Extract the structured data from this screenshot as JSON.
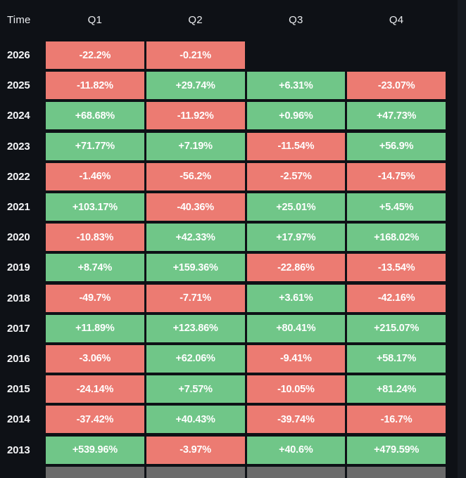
{
  "header": {
    "time_label": "Time",
    "columns": [
      "Q1",
      "Q2",
      "Q3",
      "Q4"
    ]
  },
  "chart_data": {
    "type": "heatmap",
    "columns": [
      "Q1",
      "Q2",
      "Q3",
      "Q4"
    ],
    "value_unit": "%",
    "rows": [
      {
        "year": "2026",
        "values": [
          "-22.2%",
          "-0.21%",
          "",
          ""
        ]
      },
      {
        "year": "2025",
        "values": [
          "-11.82%",
          "+29.74%",
          "+6.31%",
          "-23.07%"
        ]
      },
      {
        "year": "2024",
        "values": [
          "+68.68%",
          "-11.92%",
          "+0.96%",
          "+47.73%"
        ]
      },
      {
        "year": "2023",
        "values": [
          "+71.77%",
          "+7.19%",
          "-11.54%",
          "+56.9%"
        ]
      },
      {
        "year": "2022",
        "values": [
          "-1.46%",
          "-56.2%",
          "-2.57%",
          "-14.75%"
        ]
      },
      {
        "year": "2021",
        "values": [
          "+103.17%",
          "-40.36%",
          "+25.01%",
          "+5.45%"
        ]
      },
      {
        "year": "2020",
        "values": [
          "-10.83%",
          "+42.33%",
          "+17.97%",
          "+168.02%"
        ]
      },
      {
        "year": "2019",
        "values": [
          "+8.74%",
          "+159.36%",
          "-22.86%",
          "-13.54%"
        ]
      },
      {
        "year": "2018",
        "values": [
          "-49.7%",
          "-7.71%",
          "+3.61%",
          "-42.16%"
        ]
      },
      {
        "year": "2017",
        "values": [
          "+11.89%",
          "+123.86%",
          "+80.41%",
          "+215.07%"
        ]
      },
      {
        "year": "2016",
        "values": [
          "-3.06%",
          "+62.06%",
          "-9.41%",
          "+58.17%"
        ]
      },
      {
        "year": "2015",
        "values": [
          "-24.14%",
          "+7.57%",
          "-10.05%",
          "+81.24%"
        ]
      },
      {
        "year": "2014",
        "values": [
          "-37.42%",
          "+40.43%",
          "-39.74%",
          "-16.7%"
        ]
      },
      {
        "year": "2013",
        "values": [
          "+539.96%",
          "-3.97%",
          "+40.6%",
          "+479.59%"
        ]
      }
    ],
    "bottom_partial_row_visible": true,
    "legend": "green = positive quarterly return, red = negative quarterly return"
  },
  "colors": {
    "background": "#0e1116",
    "positive": "#70c688",
    "negative": "#ec7b72",
    "neutral_row": "#6b6b6b",
    "cell_text": "#ffffff",
    "header_text": "#e9ebee",
    "year_text": "#f4f5f7",
    "right_strip": "#161a20"
  }
}
